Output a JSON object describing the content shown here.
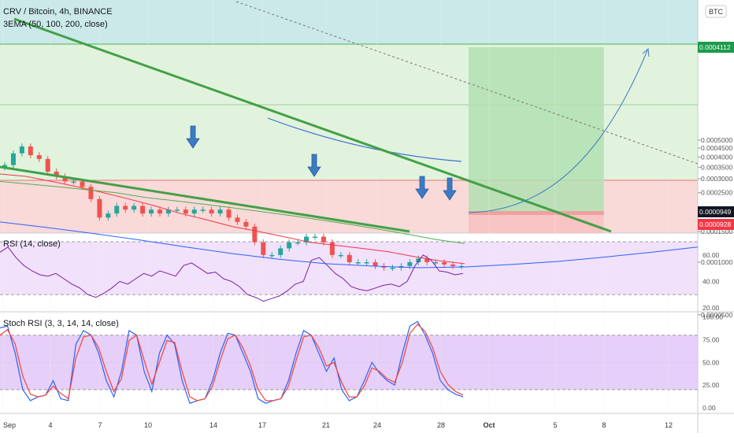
{
  "header": {
    "symbol_line": "CRV / Bitcoin, 4h, BINANCE",
    "indicator_line": "3EMA (50, 100, 200, close)",
    "currency_badge": "BTC"
  },
  "price_badges": {
    "target": "0.0004112",
    "current": "0.0000949",
    "stop": "0.0000928"
  },
  "rsi_pane": {
    "title": "RSI (14, close)"
  },
  "stoch_pane": {
    "title": "Stoch RSI (3, 3, 14, 14, close)"
  },
  "colors": {
    "bull_candle": "#26a69a",
    "bear_candle": "#ef5350",
    "ema_fast": "#f23645",
    "ema_mid": "#4caf50",
    "ema_slow": "#2962ff",
    "trendline": "#43a047",
    "arrow": "#3d7bc4",
    "target_zone": "#b2dfb2",
    "stop_zone": "#f8c4c4",
    "rsi_line": "#7b1fa2",
    "stoch_k": "#2962ff",
    "stoch_d": "#f44336",
    "badge_green": "#1b9b4b",
    "badge_red": "#f23645",
    "badge_dark": "#131722"
  },
  "chart_data": [
    {
      "type": "candlestick",
      "title": "CRV / Bitcoin, 4h, BINANCE",
      "x_tick_labels": [
        "Sep",
        "4",
        "7",
        "10",
        "14",
        "17",
        "21",
        "24",
        "28",
        "Oct",
        "5",
        "8",
        "12"
      ],
      "y_tick_labels": [
        "0.0000500",
        "0.0001000",
        "0.0001500",
        "0.0002000",
        "0.0002500",
        "0.0003000",
        "0.0003500",
        "0.0004000",
        "0.0004500",
        "0.0005000"
      ],
      "ylim": [
        3e-05,
        0.0005
      ],
      "closes": [
        0.00036,
        0.00042,
        0.00046,
        0.00041,
        0.00039,
        0.00033,
        0.00031,
        0.00029,
        0.00029,
        0.00027,
        0.00023,
        0.00018,
        0.00019,
        0.00021,
        0.0002,
        0.00021,
        0.00019,
        0.0002,
        0.00019,
        0.0002,
        0.0002,
        0.00019,
        0.0002,
        0.0002,
        0.00019,
        0.0002,
        0.00018,
        0.00017,
        0.00016,
        0.00013,
        0.00011,
        0.00011,
        0.00012,
        0.00013,
        0.00013,
        0.00014,
        0.00014,
        0.00013,
        0.00011,
        0.00011,
        0.0001,
        0.0001,
        0.0001,
        9.5e-05,
        9.3e-05,
        9.3e-05,
        9.5e-05,
        0.0001,
        0.000105,
        0.0001,
        0.0001,
        9.7e-05,
        9.5e-05,
        9.5e-05
      ],
      "series": [
        {
          "name": "EMA 50",
          "values": [
            0.00032,
            0.00031,
            0.00029,
            0.00027,
            0.00025,
            0.00023,
            0.00021,
            0.00019,
            0.000175,
            0.00016,
            0.00015,
            0.00014,
            0.00013,
            0.000125,
            0.00012,
            0.000115,
            0.000108,
            0.000102,
            9.8e-05
          ]
        },
        {
          "name": "EMA 100",
          "values": [
            0.00029,
            0.00028,
            0.00027,
            0.00026,
            0.00025,
            0.000235,
            0.000225,
            0.000215,
            0.000205,
            0.000195,
            0.000185,
            0.000175,
            0.000165,
            0.000155,
            0.000145,
            0.000135,
            0.000128
          ]
        },
        {
          "name": "EMA 200",
          "values": [
            0.00017,
            0.000158,
            0.000146,
            0.000134,
            0.000122,
            0.000112,
            0.000104,
            9.8e-05,
            9.5e-05,
            9.3e-05,
            9.4e-05,
            9.7e-05,
            0.000101,
            0.000107,
            0.000114,
            0.000122
          ]
        }
      ],
      "annotations": {
        "down_arrows": 4,
        "long_position": {
          "entry": 9.49e-05,
          "target": 0.0004112,
          "stop": 9.28e-05
        },
        "projection": "curved up-trend into the target zone",
        "falling_wedge": true
      },
      "grid": true
    },
    {
      "type": "line",
      "title": "RSI (14, close)",
      "y_tick_labels": [
        "20.00",
        "40.00",
        "60.00"
      ],
      "ylim": [
        15,
        75
      ],
      "band": [
        30,
        70
      ],
      "values": [
        62,
        66,
        58,
        52,
        48,
        45,
        44,
        46,
        42,
        38,
        35,
        30,
        28,
        31,
        35,
        40,
        38,
        42,
        46,
        44,
        48,
        46,
        44,
        52,
        54,
        50,
        46,
        47,
        42,
        40,
        36,
        30,
        28,
        25,
        27,
        29,
        33,
        38,
        40,
        56,
        58,
        52,
        46,
        42,
        36,
        34,
        33,
        35,
        37,
        38,
        36,
        40,
        52,
        60,
        56,
        48,
        47,
        45,
        46
      ]
    },
    {
      "type": "line",
      "title": "Stoch RSI (3, 3, 14, 14, close)",
      "y_tick_labels": [
        "0.00",
        "25.00",
        "50.00",
        "75.00",
        "100.00"
      ],
      "ylim": [
        -5,
        105
      ],
      "band": [
        20,
        80
      ],
      "series": [
        {
          "name": "K",
          "values": [
            88,
            90,
            60,
            20,
            8,
            12,
            14,
            30,
            10,
            8,
            70,
            85,
            80,
            60,
            30,
            12,
            40,
            85,
            80,
            40,
            18,
            60,
            80,
            70,
            30,
            5,
            8,
            10,
            30,
            60,
            82,
            80,
            60,
            40,
            10,
            5,
            8,
            10,
            30,
            60,
            85,
            80,
            60,
            40,
            55,
            20,
            8,
            12,
            30,
            50,
            38,
            30,
            25,
            60,
            90,
            95,
            80,
            60,
            30,
            20,
            15,
            12
          ]
        },
        {
          "name": "D",
          "values": [
            80,
            86,
            70,
            35,
            15,
            12,
            14,
            24,
            16,
            10,
            55,
            78,
            80,
            66,
            40,
            18,
            32,
            74,
            80,
            52,
            26,
            50,
            74,
            72,
            40,
            12,
            8,
            10,
            24,
            52,
            76,
            80,
            66,
            46,
            20,
            8,
            8,
            10,
            24,
            52,
            78,
            80,
            66,
            46,
            50,
            28,
            12,
            12,
            24,
            44,
            40,
            32,
            28,
            50,
            82,
            92,
            84,
            66,
            40,
            26,
            18,
            14
          ]
        }
      ]
    }
  ]
}
